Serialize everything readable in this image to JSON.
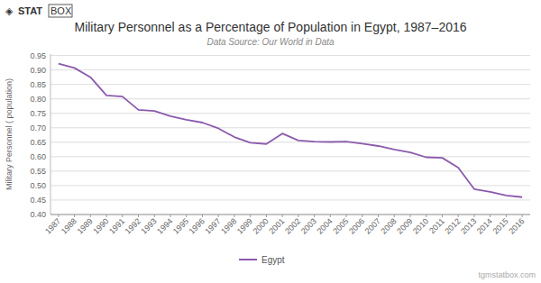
{
  "chart_data": {
    "type": "line",
    "title": "Military Personnel as a Percentage of Population in Egypt, 1987–2016",
    "subtitle": "Data Source: Our World in Data",
    "y_label": "Military Personnel ( population)",
    "annotations": [
      "◈",
      "STAT",
      "BOX",
      "tgmstatbox.com"
    ],
    "x": [
      1987,
      1988,
      1989,
      1990,
      1991,
      1992,
      1993,
      1994,
      1995,
      1996,
      1997,
      1998,
      1999,
      2000,
      2001,
      2002,
      2003,
      2004,
      2005,
      2006,
      2007,
      2008,
      2009,
      2010,
      2011,
      2012,
      2013,
      2014,
      2015,
      2016
    ],
    "series": [
      {
        "name": "Egypt",
        "color": "#8b5aad",
        "values": [
          0.922,
          0.907,
          0.875,
          0.812,
          0.808,
          0.762,
          0.758,
          0.74,
          0.728,
          0.718,
          0.698,
          0.668,
          0.648,
          0.644,
          0.68,
          0.656,
          0.652,
          0.651,
          0.652,
          0.645,
          0.637,
          0.625,
          0.615,
          0.598,
          0.596,
          0.562,
          0.488,
          0.478,
          0.466,
          0.46
        ]
      }
    ],
    "xlim": [
      1986.5,
      2016.5
    ],
    "xticks": [
      1987,
      1988,
      1989,
      1990,
      1991,
      1992,
      1993,
      1994,
      1995,
      1996,
      1997,
      1998,
      1999,
      2000,
      2001,
      2002,
      2003,
      2004,
      2005,
      2006,
      2007,
      2008,
      2009,
      2010,
      2011,
      2012,
      2013,
      2014,
      2015,
      2016
    ],
    "ylim": [
      0.4,
      0.955
    ],
    "yticks": [
      {
        "value": 0.4,
        "label": "0.40"
      },
      0.45,
      {
        "value": 0.5,
        "label": "0.50"
      },
      0.55,
      {
        "value": 0.6,
        "label": "0.60"
      },
      0.65,
      {
        "value": 0.7,
        "label": "0.70"
      },
      0.75,
      {
        "value": 0.8,
        "label": "0.80"
      },
      0.85,
      {
        "value": 0.9,
        "label": "0.90"
      },
      0.95
    ],
    "grid": true,
    "legend": "bottom"
  }
}
